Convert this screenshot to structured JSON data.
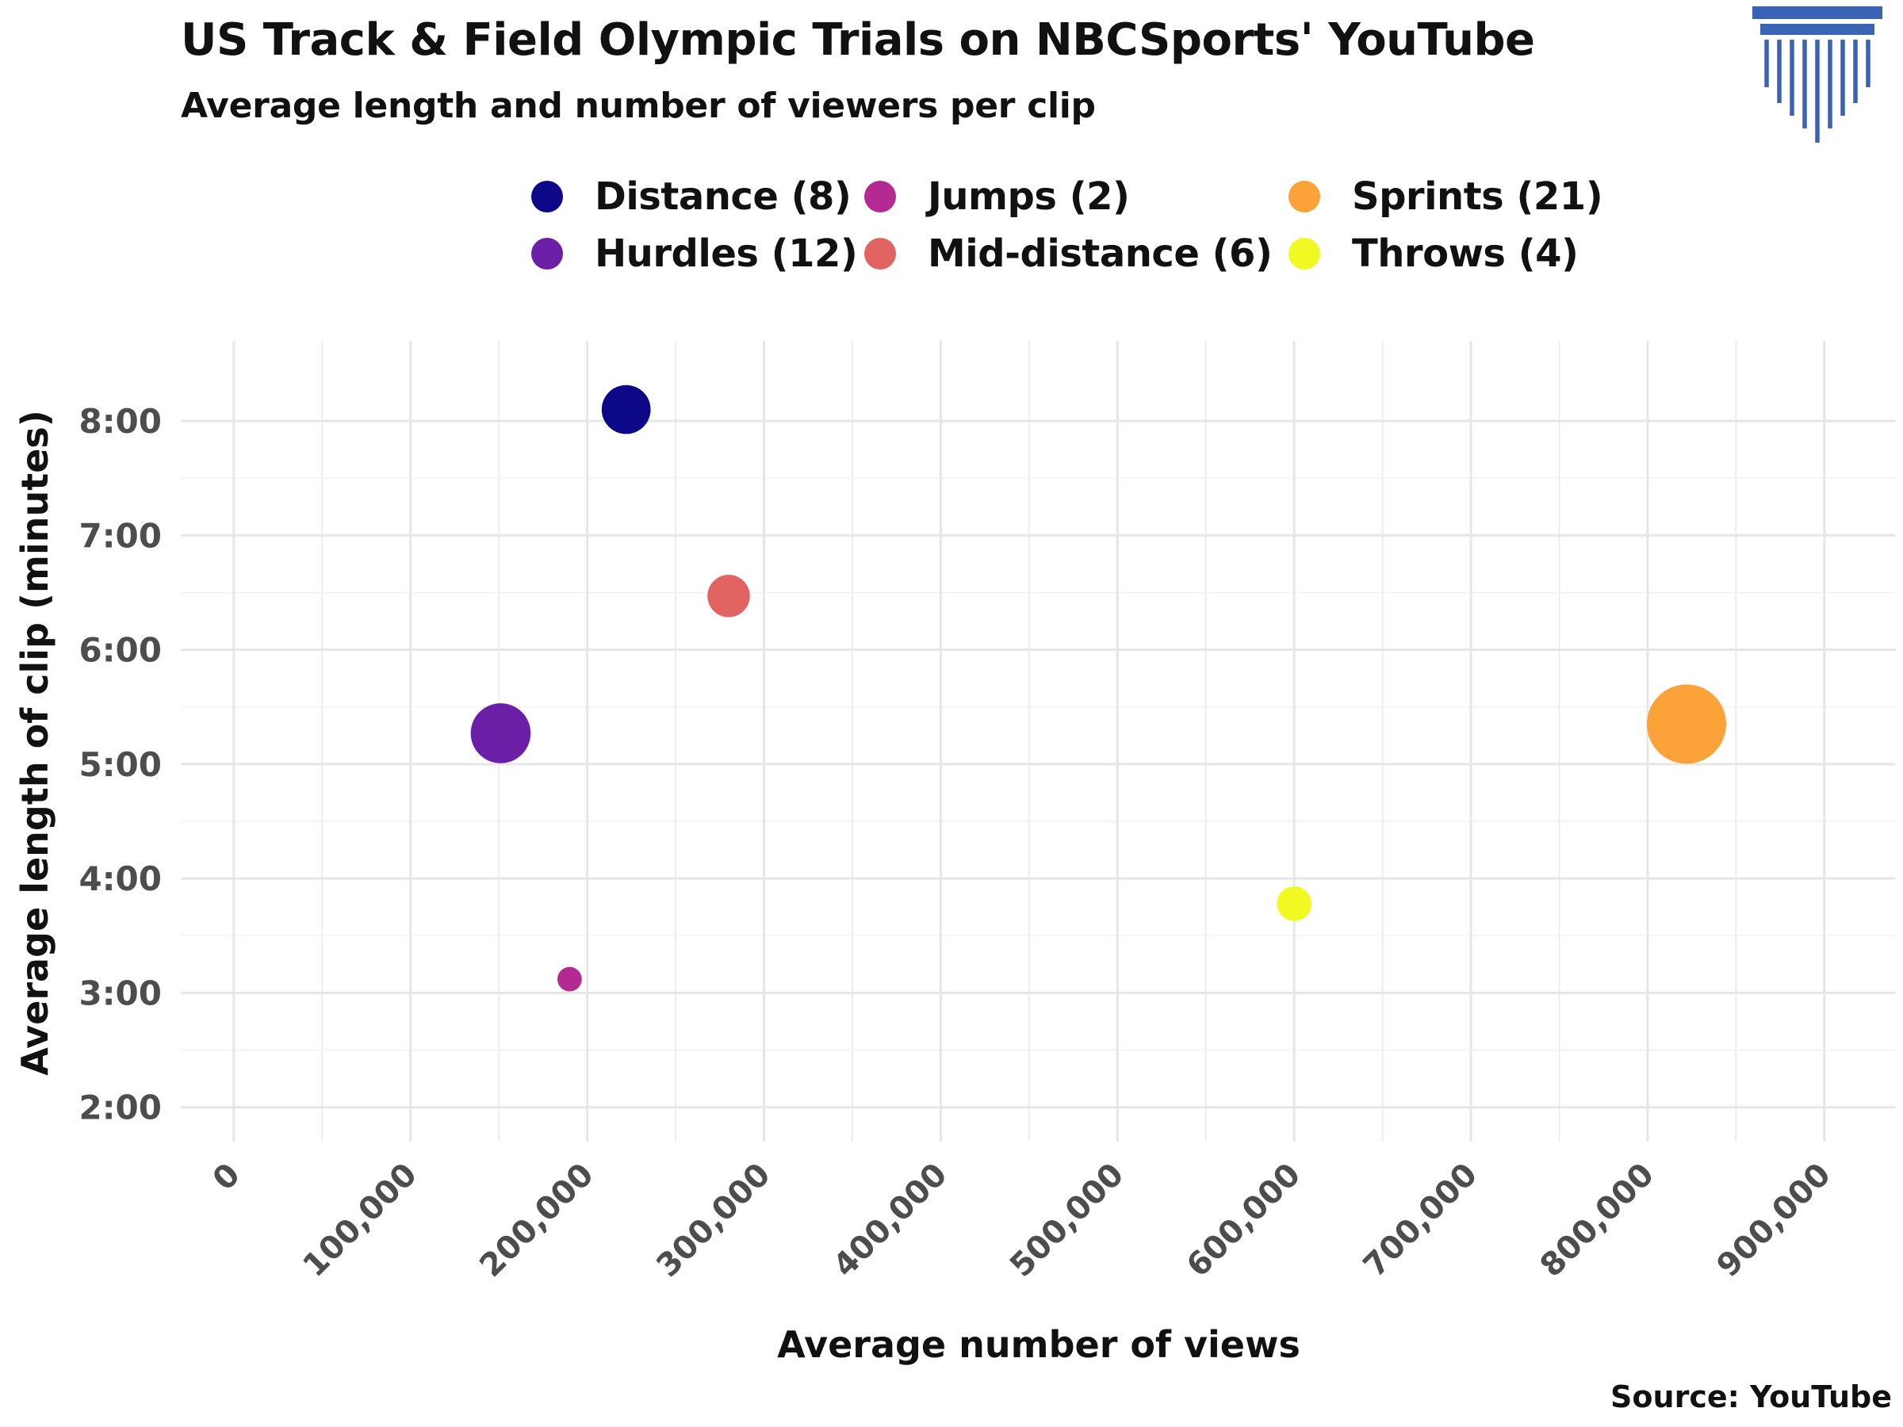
{
  "header": {
    "title": "US Track & Field Olympic Trials on NBCSports' YouTube",
    "subtitle": "Average length and number of viewers per clip"
  },
  "source": "Source: YouTube",
  "logo": {
    "icon": "column-pillar-icon",
    "color": "#3a63b4"
  },
  "chart_data": {
    "type": "scatter",
    "title": "US Track & Field Olympic Trials on NBCSports' YouTube",
    "subtitle": "Average length and number of viewers per clip",
    "xlabel": "Average number of views",
    "ylabel": "Average length of clip (minutes)",
    "xlim": [
      -30000,
      940000
    ],
    "ylim": [
      1.7,
      8.7
    ],
    "x_ticks": [
      0,
      100000,
      200000,
      300000,
      400000,
      500000,
      600000,
      700000,
      800000,
      900000
    ],
    "x_tick_labels": [
      "0",
      "100,000",
      "200,000",
      "300,000",
      "400,000",
      "500,000",
      "600,000",
      "700,000",
      "800,000",
      "900,000"
    ],
    "y_ticks": [
      2,
      3,
      4,
      5,
      6,
      7,
      8
    ],
    "y_tick_labels": [
      "2:00",
      "3:00",
      "4:00",
      "5:00",
      "6:00",
      "7:00",
      "8:00"
    ],
    "grid": true,
    "legend_position": "top",
    "size_encodes": "number of clips",
    "series": [
      {
        "name": "Distance (8)",
        "count": 8,
        "color": "#0d0887",
        "x": 222000,
        "y": 8.1
      },
      {
        "name": "Hurdles (12)",
        "count": 12,
        "color": "#6a1fa6",
        "x": 151000,
        "y": 5.27
      },
      {
        "name": "Jumps (2)",
        "count": 2,
        "color": "#b32a93",
        "x": 190000,
        "y": 3.12
      },
      {
        "name": "Mid-distance (6)",
        "count": 6,
        "color": "#e16462",
        "x": 280000,
        "y": 6.47
      },
      {
        "name": "Sprints (21)",
        "count": 21,
        "color": "#fba238",
        "x": 822000,
        "y": 5.35
      },
      {
        "name": "Throws (4)",
        "count": 4,
        "color": "#f0f921",
        "x": 600000,
        "y": 3.78
      }
    ]
  }
}
